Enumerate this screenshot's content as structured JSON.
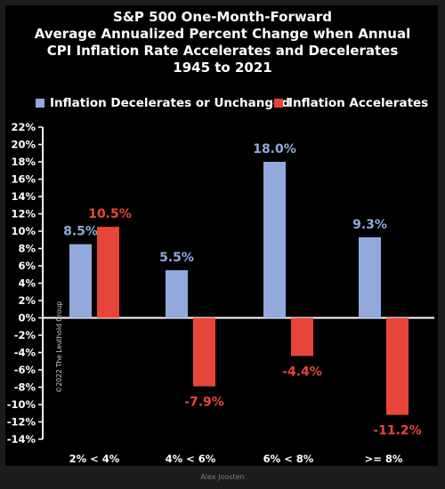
{
  "title_lines": [
    "S&P 500 One-Month-Forward",
    "Average Annualized Percent Change when Annual",
    "CPI Inflation Rate Accelerates and Decelerates",
    "1945 to 2021"
  ],
  "copyright": "©2022 The Leuthold Group",
  "credit": "Alex Joosten",
  "colors": {
    "decelerates": "#92a9dc",
    "accelerates": "#e8453a",
    "axis": "#ffffff"
  },
  "chart_data": {
    "type": "bar",
    "categories": [
      "2% < 4%",
      "4% < 6%",
      "6% < 8%",
      ">= 8%"
    ],
    "series": [
      {
        "name": "Inflation Decelerates or Unchanged",
        "values": [
          8.5,
          5.5,
          18.0,
          9.3
        ],
        "labels": [
          "8.5%",
          "5.5%",
          "18.0%",
          "9.3%"
        ]
      },
      {
        "name": "Inflation Accelerates",
        "values": [
          10.5,
          -7.9,
          -4.4,
          -11.2
        ],
        "labels": [
          "10.5%",
          "-7.9%",
          "-4.4%",
          "-11.2%"
        ]
      }
    ],
    "ylim": [
      -14,
      22
    ],
    "yticks": [
      22,
      20,
      18,
      16,
      14,
      12,
      10,
      8,
      6,
      4,
      2,
      0,
      -2,
      -4,
      -6,
      -8,
      -10,
      -12,
      -14
    ],
    "ytick_labels": [
      "22%",
      "20%",
      "18%",
      "16%",
      "14%",
      "12%",
      "10%",
      "8%",
      "6%",
      "4%",
      "2%",
      "0%",
      "-2%",
      "-4%",
      "-6%",
      "-8%",
      "-10%",
      "-12%",
      "-14%"
    ],
    "legend_position": "top",
    "grid": false
  }
}
